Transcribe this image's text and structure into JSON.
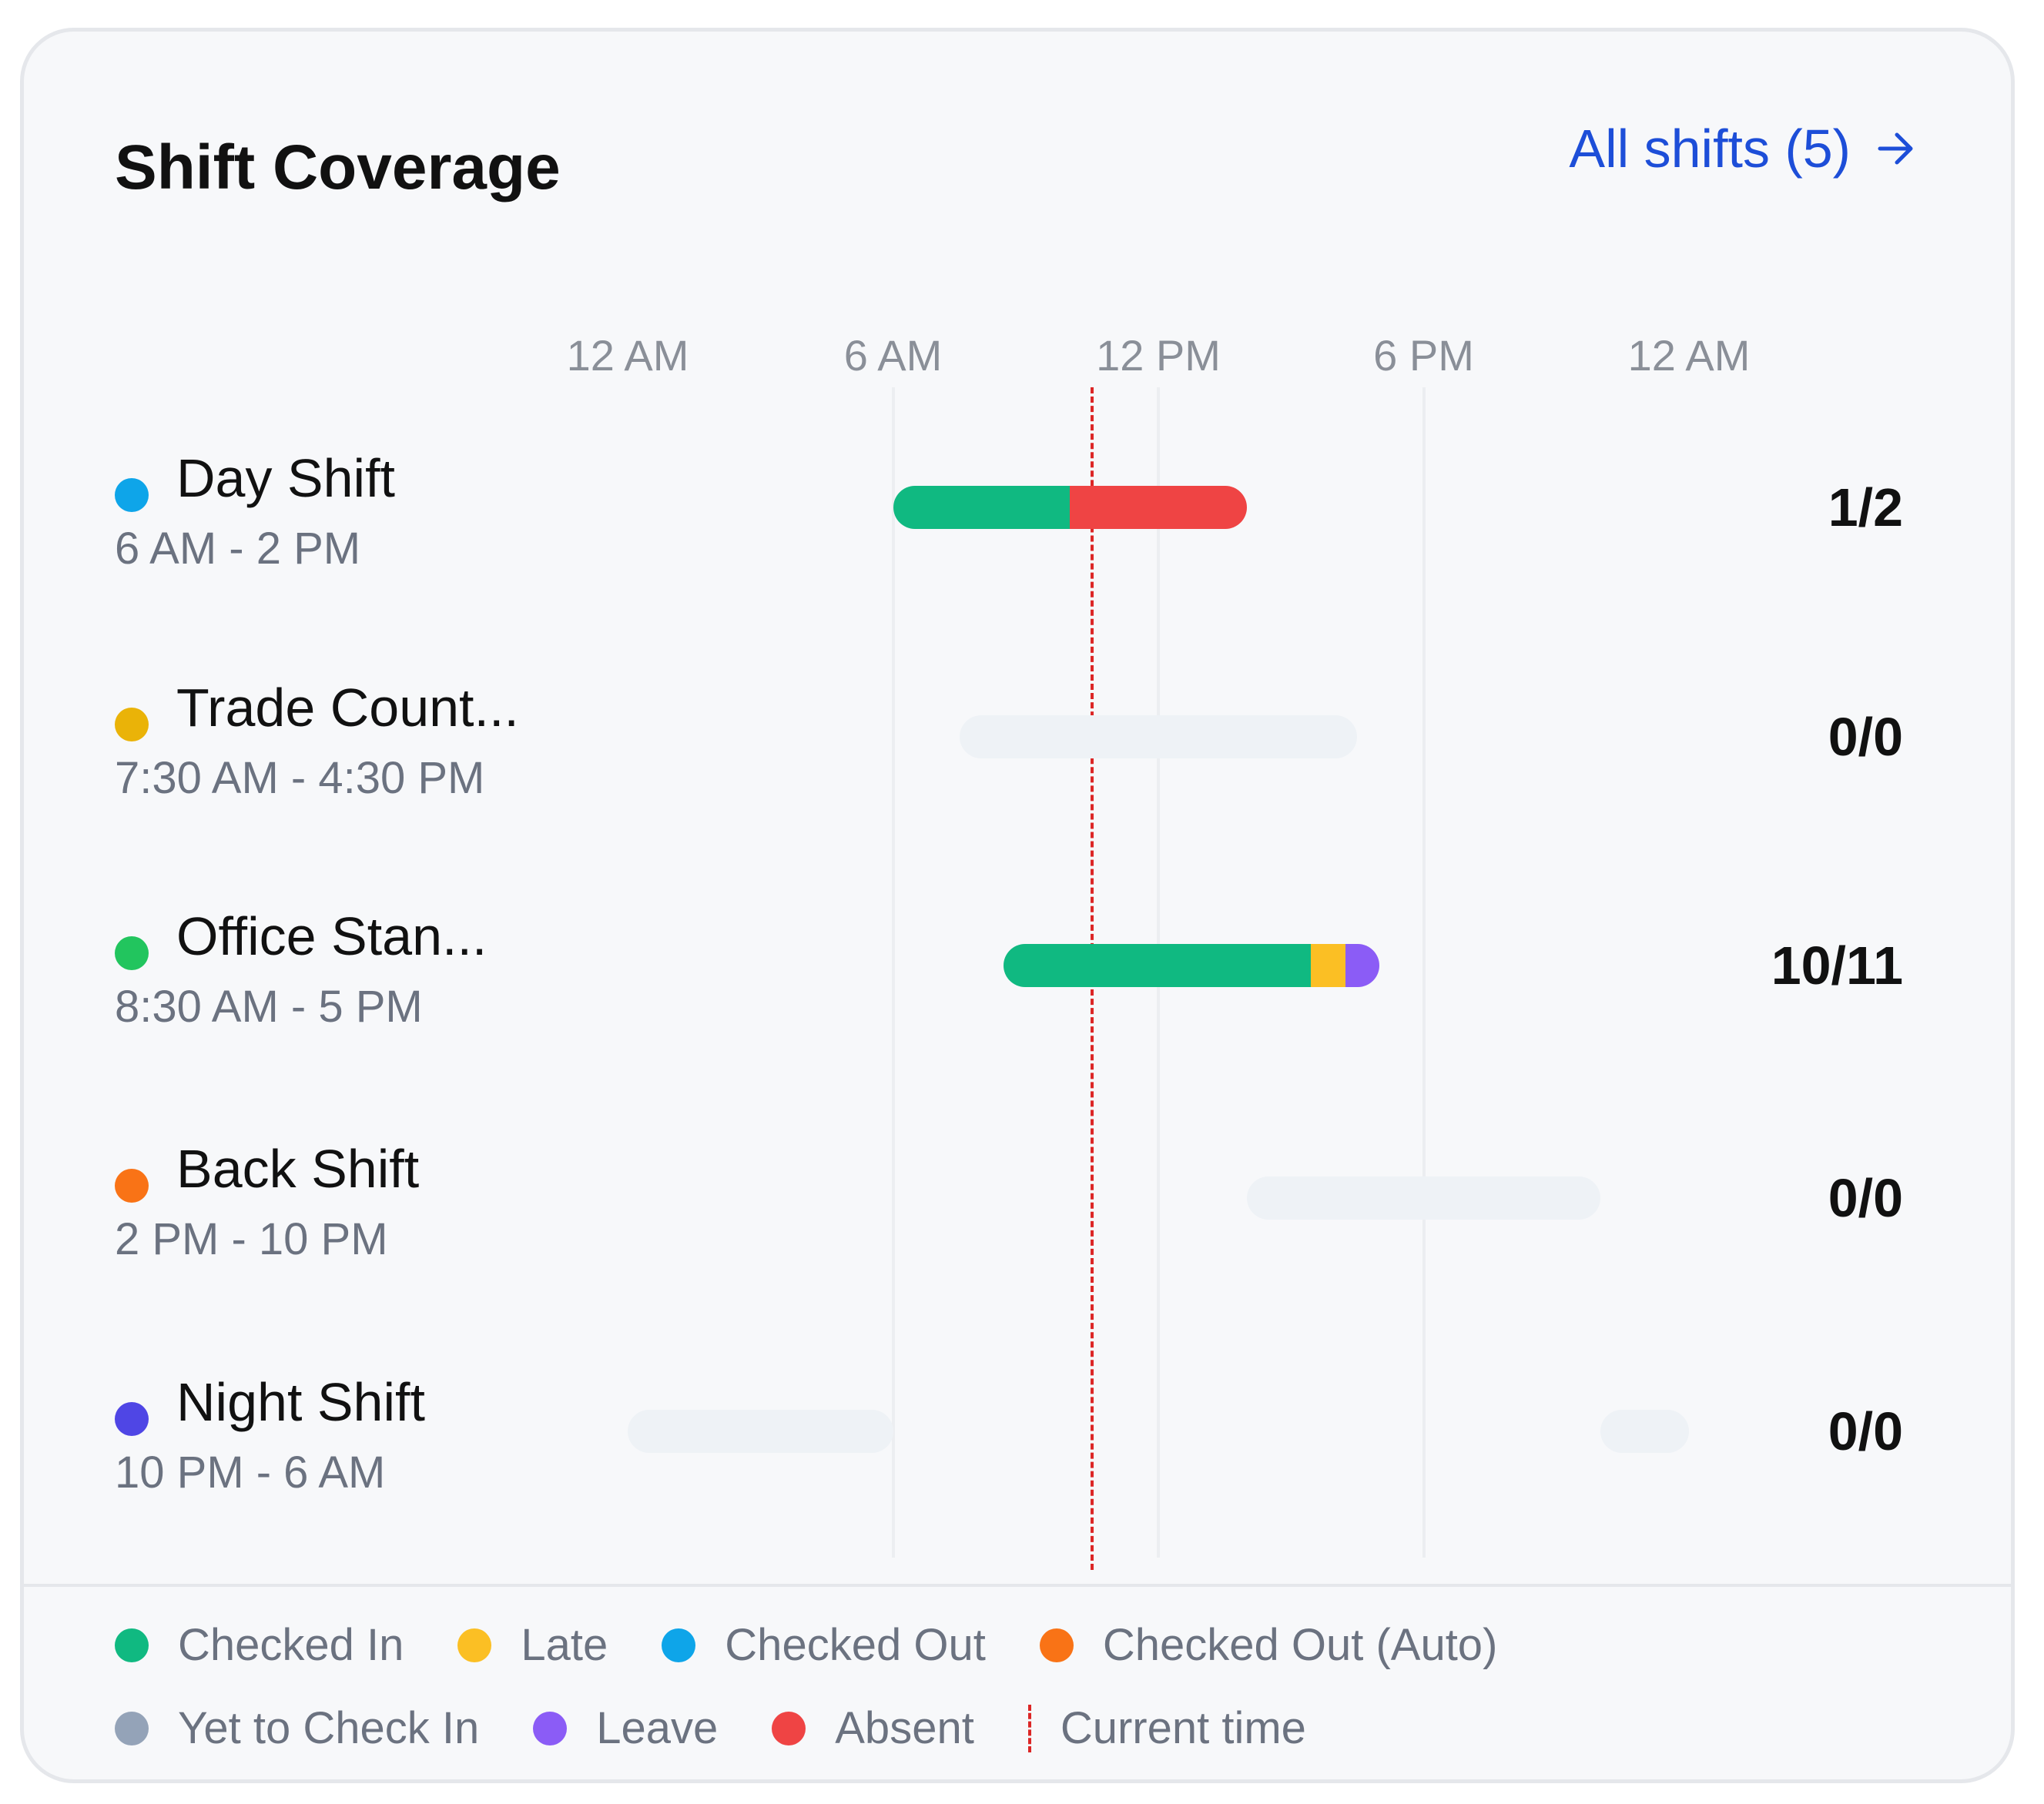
{
  "card": {
    "title": "Shift Coverage",
    "all_shifts_label": "All shifts (5)",
    "arrow_icon": "arrow-right-icon"
  },
  "axis": {
    "ticks": [
      "12 AM",
      "6 AM",
      "12 PM",
      "6 PM",
      "12 AM"
    ]
  },
  "current_time_hours": 10.5,
  "shifts": [
    {
      "name": "Day Shift",
      "time": "6 AM - 2 PM",
      "color": "#0ea5e9",
      "count": "1/2",
      "segments": [
        {
          "status": "Checked In",
          "count": 1
        },
        {
          "status": "Absent",
          "count": 1
        }
      ]
    },
    {
      "name": "Trade Count...",
      "time": "7:30 AM - 4:30 PM",
      "color": "#eab308",
      "count": "0/0",
      "segments": []
    },
    {
      "name": "Office Stan...",
      "time": "8:30 AM - 5 PM",
      "color": "#22c55e",
      "count": "10/11",
      "segments": [
        {
          "status": "Checked In",
          "count": 9
        },
        {
          "status": "Late",
          "count": 1
        },
        {
          "status": "Leave",
          "count": 1
        }
      ]
    },
    {
      "name": "Back Shift",
      "time": "2 PM - 10 PM",
      "color": "#f97316",
      "count": "0/0",
      "segments": []
    },
    {
      "name": "Night Shift",
      "time": "10 PM - 6 AM",
      "color": "#4f46e5",
      "count": "0/0",
      "segments": []
    }
  ],
  "legend": [
    {
      "label": "Checked In",
      "color": "#10b981"
    },
    {
      "label": "Late",
      "color": "#fbbf24"
    },
    {
      "label": "Checked Out",
      "color": "#0ea5e9"
    },
    {
      "label": "Checked Out (Auto)",
      "color": "#f97316"
    },
    {
      "label": "Yet to Check In",
      "color": "#94a3b8"
    },
    {
      "label": "Leave",
      "color": "#8b5cf6"
    },
    {
      "label": "Absent",
      "color": "#ef4444"
    },
    {
      "label": "Current time",
      "color": "#dc2626"
    }
  ]
}
